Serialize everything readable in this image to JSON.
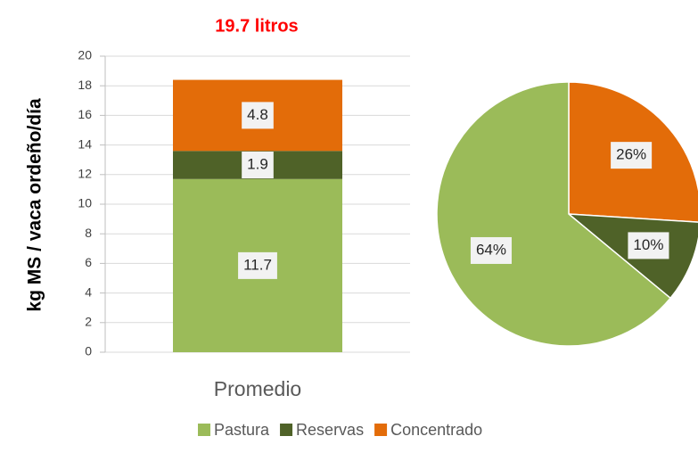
{
  "chart_data": [
    {
      "type": "stacked_bar",
      "title": "19.7 litros",
      "y_label": "kg MS /  vaca ordeño/día",
      "categories": [
        "Promedio"
      ],
      "series": [
        {
          "name": "Pastura",
          "color": "#9bbb59",
          "values": [
            11.7
          ]
        },
        {
          "name": "Reservas",
          "color": "#4f6228",
          "values": [
            1.9
          ]
        },
        {
          "name": "Concentrado",
          "color": "#e36c09",
          "values": [
            4.8
          ]
        }
      ],
      "ylim": [
        0,
        20
      ],
      "yticks": [
        0,
        2,
        4,
        6,
        8,
        10,
        12,
        14,
        16,
        18,
        20
      ],
      "grid": true,
      "legend": "bottom"
    },
    {
      "type": "pie",
      "values": [
        26,
        10,
        64
      ],
      "value_labels": [
        "26%",
        "10%",
        "64%"
      ],
      "colors": [
        "#e36c09",
        "#4f6228",
        "#9bbb59"
      ]
    }
  ]
}
